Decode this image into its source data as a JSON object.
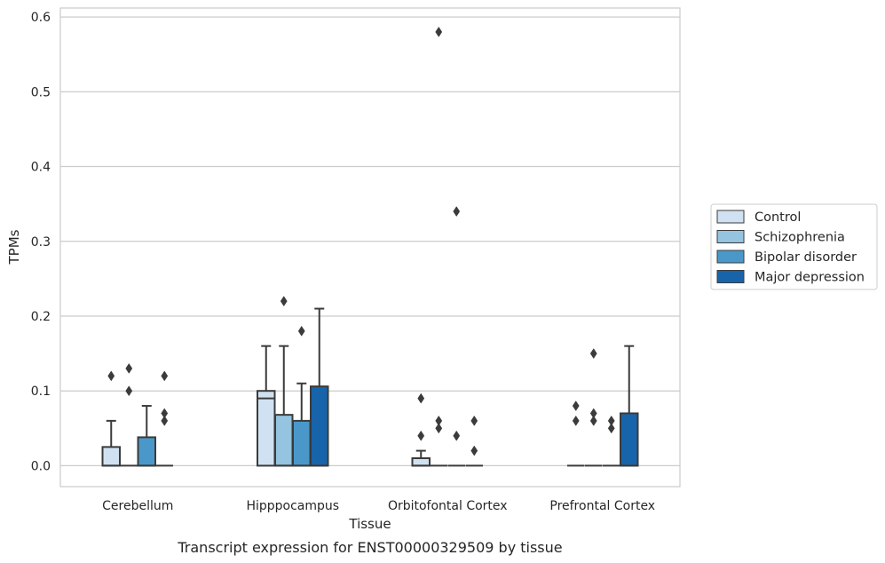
{
  "caption": "Transcript expression for ENST00000329509 by tissue",
  "chart_data": {
    "type": "box",
    "xlabel": "Tissue",
    "ylabel": "TPMs",
    "ylim": [
      -0.028,
      0.612
    ],
    "yticks": [
      "0.0",
      "0.1",
      "0.2",
      "0.3",
      "0.4",
      "0.5",
      "0.6"
    ],
    "grid": true,
    "legend_position": "right",
    "categories": [
      "Cerebellum",
      "Hipppocampus",
      "Orbitofontal Cortex",
      "Prefrontal Cortex"
    ],
    "series": [
      {
        "name": "Control",
        "color": "#d0e1f2",
        "boxes": [
          {
            "q1": 0,
            "median": 0,
            "q3": 0.025,
            "whisker_low": 0,
            "whisker_high": 0.06,
            "outliers": [
              0.12
            ]
          },
          {
            "q1": 0,
            "median": 0.09,
            "q3": 0.1,
            "whisker_low": 0,
            "whisker_high": 0.16,
            "outliers": []
          },
          {
            "q1": 0,
            "median": 0,
            "q3": 0.01,
            "whisker_low": 0,
            "whisker_high": 0.02,
            "outliers": [
              0.04,
              0.09
            ]
          },
          {
            "q1": 0,
            "median": 0,
            "q3": 0,
            "whisker_low": 0,
            "whisker_high": 0,
            "outliers": [
              0.06,
              0.08
            ]
          }
        ]
      },
      {
        "name": "Schizophrenia",
        "color": "#94c4df",
        "boxes": [
          {
            "q1": 0,
            "median": 0,
            "q3": 0,
            "whisker_low": 0,
            "whisker_high": 0,
            "outliers": [
              0.1,
              0.13
            ]
          },
          {
            "q1": 0,
            "median": 0,
            "q3": 0.068,
            "whisker_low": 0,
            "whisker_high": 0.16,
            "outliers": [
              0.22
            ]
          },
          {
            "q1": 0,
            "median": 0,
            "q3": 0,
            "whisker_low": 0,
            "whisker_high": 0,
            "outliers": [
              0.05,
              0.06,
              0.58
            ]
          },
          {
            "q1": 0,
            "median": 0,
            "q3": 0,
            "whisker_low": 0,
            "whisker_high": 0,
            "outliers": [
              0.06,
              0.07,
              0.15
            ]
          }
        ]
      },
      {
        "name": "Bipolar disorder",
        "color": "#4a98c9",
        "boxes": [
          {
            "q1": 0,
            "median": 0,
            "q3": 0.038,
            "whisker_low": 0,
            "whisker_high": 0.08,
            "outliers": []
          },
          {
            "q1": 0,
            "median": 0,
            "q3": 0.06,
            "whisker_low": 0,
            "whisker_high": 0.11,
            "outliers": [
              0.18
            ]
          },
          {
            "q1": 0,
            "median": 0,
            "q3": 0,
            "whisker_low": 0,
            "whisker_high": 0,
            "outliers": [
              0.04,
              0.34
            ]
          },
          {
            "q1": 0,
            "median": 0,
            "q3": 0,
            "whisker_low": 0,
            "whisker_high": 0,
            "outliers": [
              0.05,
              0.06
            ]
          }
        ]
      },
      {
        "name": "Major depression",
        "color": "#1764ab",
        "boxes": [
          {
            "q1": 0,
            "median": 0,
            "q3": 0,
            "whisker_low": 0,
            "whisker_high": 0,
            "outliers": [
              0.06,
              0.07,
              0.12
            ]
          },
          {
            "q1": 0,
            "median": 0,
            "q3": 0.106,
            "whisker_low": 0,
            "whisker_high": 0.21,
            "outliers": []
          },
          {
            "q1": 0,
            "median": 0,
            "q3": 0,
            "whisker_low": 0,
            "whisker_high": 0,
            "outliers": [
              0.02,
              0.06
            ]
          },
          {
            "q1": 0,
            "median": 0,
            "q3": 0.07,
            "whisker_low": 0,
            "whisker_high": 0.16,
            "outliers": []
          }
        ]
      }
    ]
  }
}
